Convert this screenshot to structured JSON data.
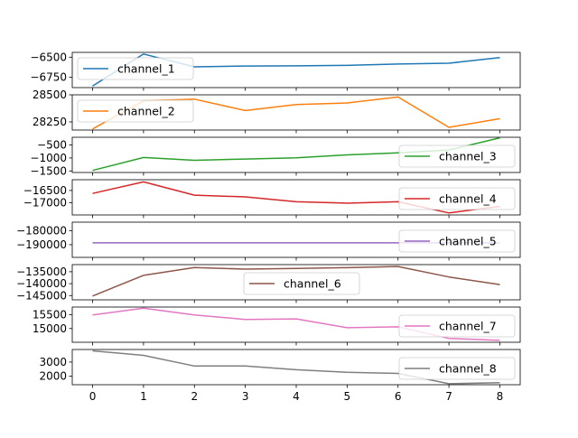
{
  "chart_data": {
    "type": "line",
    "layout": "stacked-subplots-shared-x",
    "x": [
      0,
      1,
      2,
      3,
      4,
      5,
      6,
      7,
      8
    ],
    "x_ticks": [
      "0",
      "1",
      "2",
      "3",
      "4",
      "5",
      "6",
      "7",
      "8"
    ],
    "xlim": [
      -0.4,
      8.4
    ],
    "grid": false,
    "series": [
      {
        "name": "channel_1",
        "color": "#1f77b4",
        "values": [
          -6860,
          -6460,
          -6620,
          -6610,
          -6608,
          -6602,
          -6585,
          -6575,
          -6505
        ],
        "ylim": [
          -6880,
          -6440
        ],
        "yticks": [
          -6750,
          -6500
        ],
        "ytick_labels": [
          "−6750",
          "−6500"
        ],
        "legend_loc": "upper-left"
      },
      {
        "name": "channel_2",
        "color": "#ff7f0e",
        "values": [
          28185,
          28445,
          28460,
          28355,
          28410,
          28425,
          28480,
          28200,
          28280
        ],
        "ylim": [
          28175,
          28500
        ],
        "yticks": [
          28250,
          28500
        ],
        "ytick_labels": [
          "28250",
          "28500"
        ],
        "legend_loc": "upper-left"
      },
      {
        "name": "channel_3",
        "color": "#2ca02c",
        "values": [
          -1480,
          -980,
          -1090,
          -1040,
          -990,
          -880,
          -800,
          -690,
          -220
        ],
        "ylim": [
          -1560,
          -200
        ],
        "yticks": [
          -1500,
          -1000,
          -500
        ],
        "ytick_labels": [
          "−1500",
          "−1000",
          "−500"
        ],
        "legend_loc": "lower-right"
      },
      {
        "name": "channel_4",
        "color": "#d62728",
        "values": [
          -16620,
          -16150,
          -16690,
          -16760,
          -16960,
          -17020,
          -16960,
          -17420,
          -17150
        ],
        "ylim": [
          -17500,
          -16060
        ],
        "yticks": [
          -17000,
          -16500
        ],
        "ytick_labels": [
          "−17000",
          "−16500"
        ],
        "legend_loc": "lower-right"
      },
      {
        "name": "channel_5",
        "color": "#9467bd",
        "values": [
          -188700,
          -188700,
          -188700,
          -188700,
          -188700,
          -188700,
          -188700,
          -188700,
          -188700
        ],
        "ylim": [
          -199000,
          -174000
        ],
        "yticks": [
          -190000,
          -180000
        ],
        "ytick_labels": [
          "−190000",
          "−180000"
        ],
        "legend_loc": "lower-right"
      },
      {
        "name": "channel_6",
        "color": "#8c564b",
        "values": [
          -145200,
          -136500,
          -133200,
          -133900,
          -133600,
          -133300,
          -132800,
          -137200,
          -140400
        ],
        "ylim": [
          -146800,
          -132000
        ],
        "yticks": [
          -145000,
          -140000,
          -135000
        ],
        "ytick_labels": [
          "−145000",
          "−140000",
          "−135000"
        ],
        "legend_loc": "lower-center"
      },
      {
        "name": "channel_7",
        "color": "#e377c2",
        "values": [
          15490,
          15740,
          15490,
          15330,
          15350,
          15030,
          15060,
          14640,
          14570
        ],
        "ylim": [
          14500,
          15780
        ],
        "yticks": [
          15000,
          15500
        ],
        "ytick_labels": [
          "15000",
          "15500"
        ],
        "legend_loc": "lower-right"
      },
      {
        "name": "channel_8",
        "color": "#7f7f7f",
        "values": [
          3800,
          3480,
          2720,
          2720,
          2450,
          2270,
          2190,
          1450,
          1520
        ],
        "ylim": [
          1380,
          3900
        ],
        "yticks": [
          2000,
          3000
        ],
        "ytick_labels": [
          "2000",
          "3000"
        ],
        "legend_loc": "lower-right"
      }
    ]
  }
}
